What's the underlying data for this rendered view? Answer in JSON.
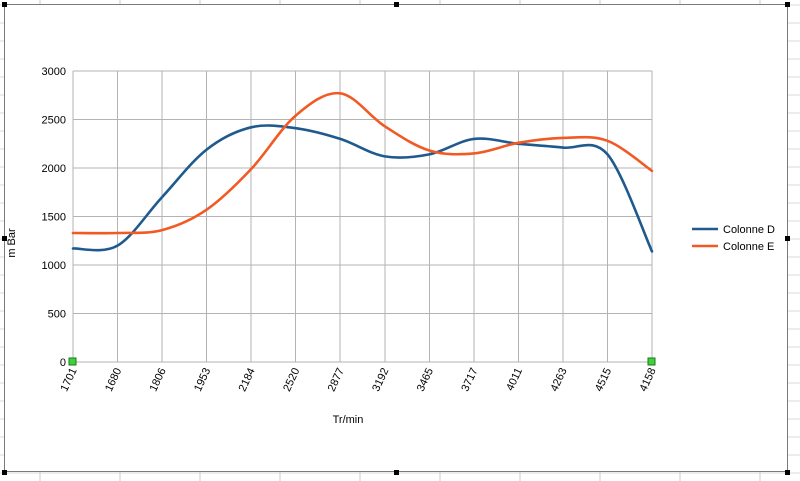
{
  "chart_data": {
    "type": "line",
    "title": "",
    "xlabel": "Tr/min",
    "ylabel": "m Bar",
    "ylim": [
      0,
      3000
    ],
    "yticks": [
      "0",
      "500",
      "1000",
      "1500",
      "2000",
      "2500",
      "3000"
    ],
    "categories": [
      "1701",
      "1680",
      "1806",
      "1953",
      "2184",
      "2520",
      "2877",
      "3192",
      "3465",
      "3717",
      "4011",
      "4263",
      "4515",
      "4158"
    ],
    "grid": true,
    "legend": "right",
    "series": [
      {
        "name": "Colonne D",
        "color": "#1f5a8f",
        "values": [
          1170,
          1200,
          1700,
          2190,
          2420,
          2410,
          2300,
          2120,
          2140,
          2300,
          2250,
          2210,
          2140,
          1140
        ]
      },
      {
        "name": "Colonne E",
        "color": "#f25a24",
        "values": [
          1330,
          1330,
          1360,
          1570,
          1990,
          2540,
          2770,
          2430,
          2180,
          2150,
          2260,
          2310,
          2280,
          1970
        ]
      }
    ]
  }
}
